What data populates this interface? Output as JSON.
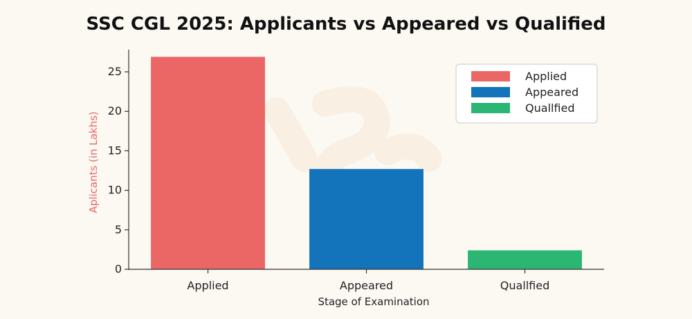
{
  "chart_data": {
    "type": "bar",
    "title": "SSC CGL 2025: Applicants vs Appeared vs Qualified",
    "xlabel": "Stage of Examination",
    "ylabel": "Aplicants (in Lakhs)",
    "categories": [
      "Applied",
      "Appeared",
      "Quallfied"
    ],
    "values": [
      26.9,
      12.7,
      2.4
    ],
    "colors": [
      "#eb6766",
      "#1373bb",
      "#2bb673"
    ],
    "ylabel_color": "#eb6766",
    "ylim": [
      0,
      27.8
    ],
    "yticks": [
      0,
      5,
      10,
      15,
      20,
      25
    ],
    "grid": false,
    "legend": {
      "position": "top-right",
      "entries": [
        "Applied",
        "Appeared",
        "Quallfied"
      ]
    }
  }
}
